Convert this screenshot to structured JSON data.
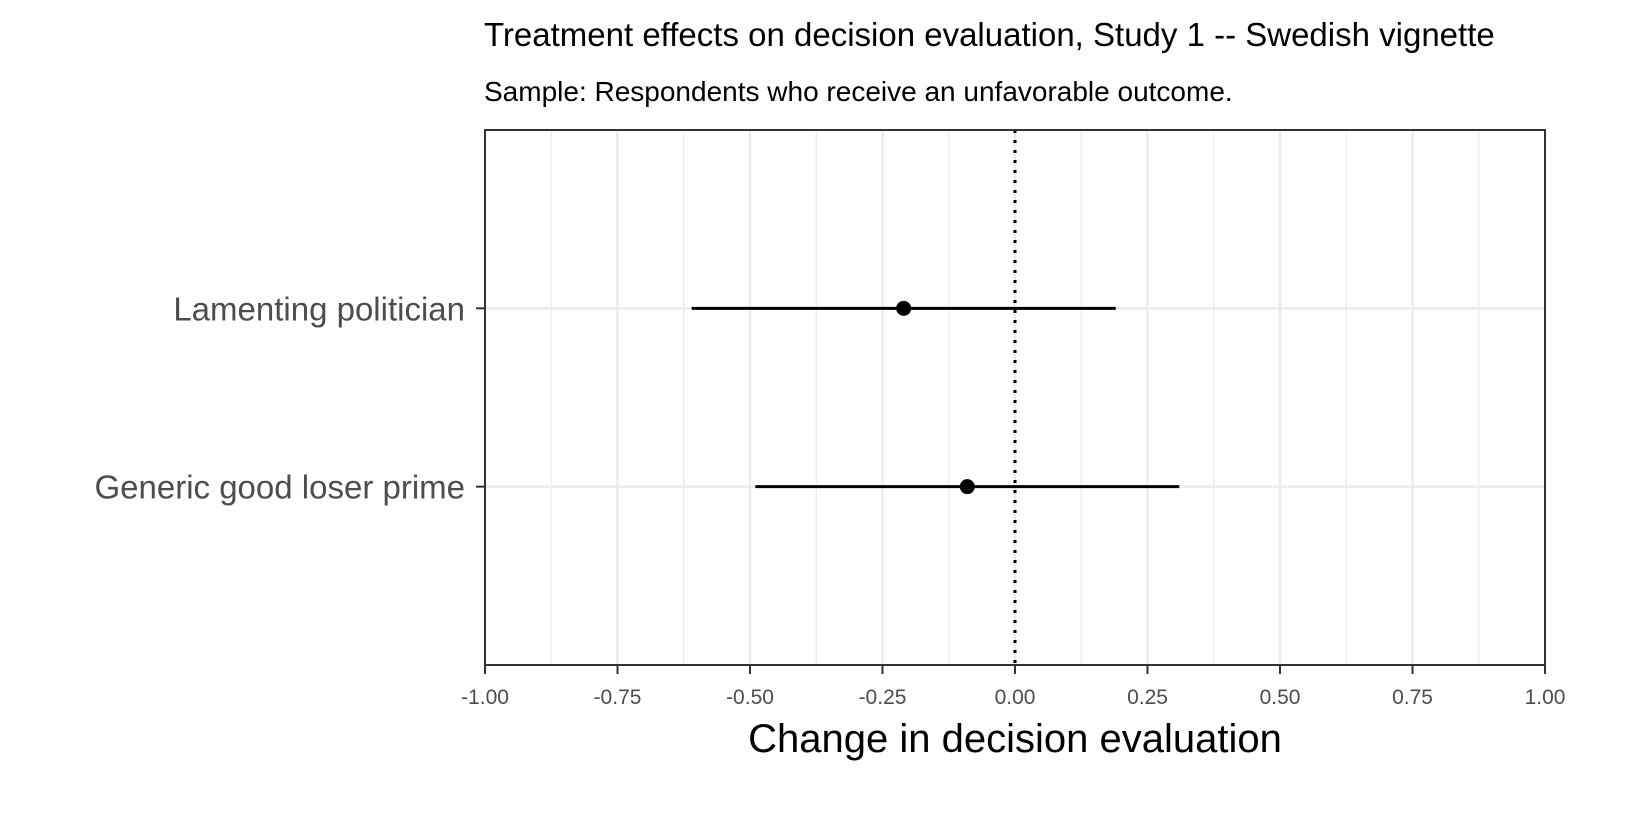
{
  "chart_data": {
    "type": "scatter",
    "title": "Treatment effects on decision evaluation, Study 1 -- Swedish vignette",
    "subtitle": "Sample: Respondents who receive an unfavorable outcome.",
    "xlabel": "Change in decision evaluation",
    "ylabel": "",
    "xlim": [
      -1.0,
      1.0
    ],
    "xticks": [
      "-1.00",
      "-0.75",
      "-0.50",
      "-0.25",
      "0.00",
      "0.25",
      "0.50",
      "0.75",
      "1.00"
    ],
    "xtick_values": [
      -1.0,
      -0.75,
      -0.5,
      -0.25,
      0.0,
      0.25,
      0.5,
      0.75,
      1.0
    ],
    "reference_line": {
      "x": 0.0,
      "style": "dotted"
    },
    "grid": true,
    "points": [
      {
        "label": "Lamenting politician",
        "estimate": -0.21,
        "lower": -0.61,
        "upper": 0.19
      },
      {
        "label": "Generic good loser prime",
        "estimate": -0.09,
        "lower": -0.49,
        "upper": 0.31
      }
    ],
    "colors": {
      "point": "#000000",
      "grid": "#ebebeb",
      "axis": "#333333",
      "label": "#4d4d4d"
    }
  }
}
